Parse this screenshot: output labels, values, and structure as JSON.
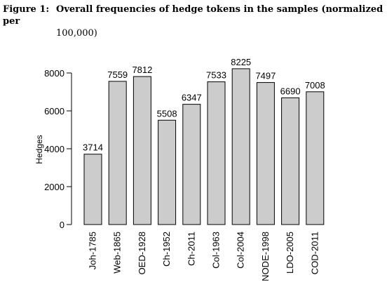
{
  "caption": {
    "label": "Figure 1:",
    "title_line1": "Overall frequencies of hedge tokens in the samples (normalized per",
    "title_line2": "100,000)"
  },
  "chart_data": {
    "type": "bar",
    "categories": [
      "Joh-1785",
      "Web-1865",
      "OED-1928",
      "Ch-1952",
      "Ch-2011",
      "Col-1963",
      "Col-2004",
      "NODE-1998",
      "LDO-2005",
      "COD-2011"
    ],
    "values": [
      3714,
      7559,
      7812,
      5508,
      6347,
      7533,
      8225,
      7497,
      6690,
      7008
    ],
    "data_labels": [
      "3714",
      "7559",
      "7812",
      "5508",
      "6347",
      "7533",
      "8225",
      "7497",
      "6690",
      "7008"
    ],
    "ylabel": "Hedges",
    "xlabel": "",
    "yticks": [
      0,
      2000,
      4000,
      6000,
      8000
    ],
    "ylim": [
      0,
      8000
    ],
    "grid": false,
    "bar_color": "#cccccc",
    "bar_outline_color": "#000000"
  }
}
